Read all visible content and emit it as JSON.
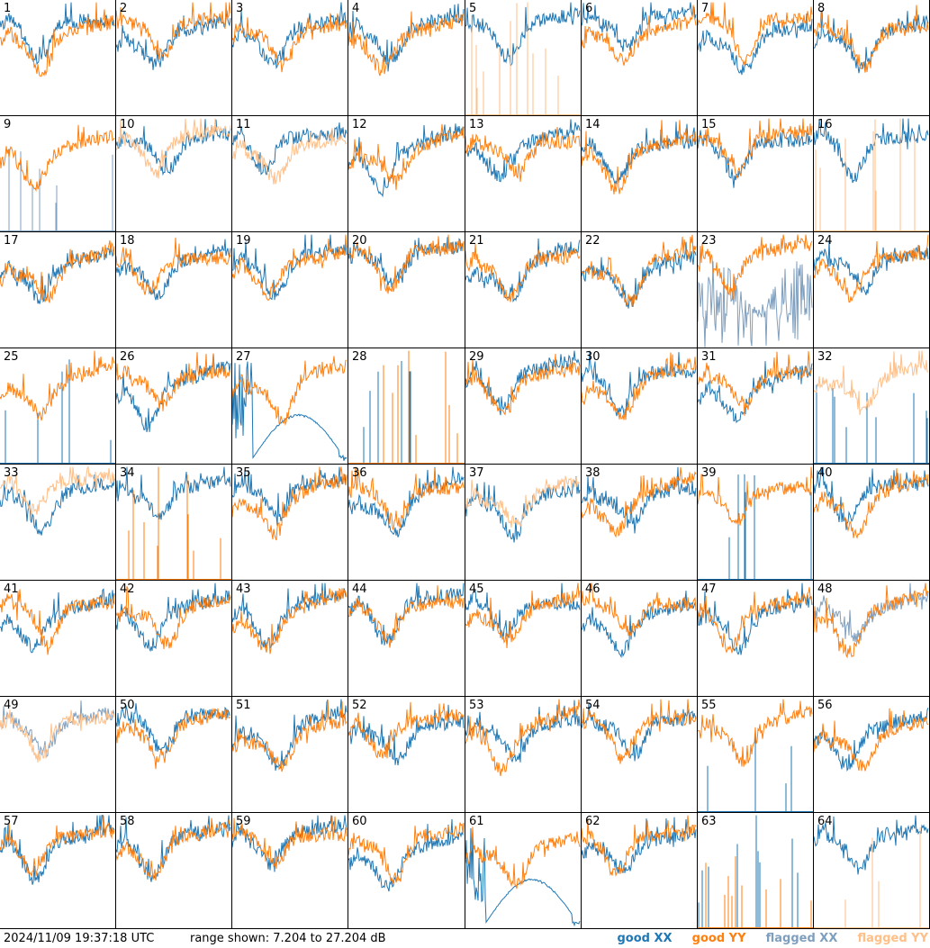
{
  "footer": {
    "timestamp": "2024/11/09 19:37:18 UTC",
    "range_text": "range shown: 7.204 to 27.204 dB"
  },
  "legend": [
    {
      "label": "good XX",
      "color": "#1f77b4"
    },
    {
      "label": "good YY",
      "color": "#ff7f0e"
    },
    {
      "label": "flagged XX",
      "color": "#7f9fbf"
    },
    {
      "label": "flagged YY",
      "color": "#ffbf87"
    }
  ],
  "chart_data": {
    "type": "line",
    "y_unit": "dB",
    "ylim": [
      7.204,
      27.204
    ],
    "grid": false,
    "layout": {
      "rows": 8,
      "cols": 8
    },
    "series_types": [
      "good XX",
      "good YY",
      "flagged XX",
      "flagged YY"
    ],
    "panels": [
      {
        "id": "1",
        "xx": "good",
        "yy": "good"
      },
      {
        "id": "2",
        "xx": "good",
        "yy": "good"
      },
      {
        "id": "3",
        "xx": "good",
        "yy": "good"
      },
      {
        "id": "4",
        "xx": "good",
        "yy": "good"
      },
      {
        "id": "5",
        "xx": "good",
        "yy": "flagged",
        "yy_style": "spiky"
      },
      {
        "id": "6",
        "xx": "good",
        "yy": "good"
      },
      {
        "id": "7",
        "xx": "good",
        "yy": "good"
      },
      {
        "id": "8",
        "xx": "good",
        "yy": "good"
      },
      {
        "id": "9",
        "xx": "flagged",
        "yy": "good",
        "xx_style": "spiky"
      },
      {
        "id": "10",
        "xx": "good",
        "yy": "flagged"
      },
      {
        "id": "11",
        "xx": "good",
        "yy": "flagged"
      },
      {
        "id": "12",
        "xx": "good",
        "yy": "good"
      },
      {
        "id": "13",
        "xx": "good",
        "yy": "good"
      },
      {
        "id": "14",
        "xx": "good",
        "yy": "good"
      },
      {
        "id": "15",
        "xx": "good",
        "yy": "good"
      },
      {
        "id": "16",
        "xx": "good",
        "yy": "flagged",
        "yy_style": "spiky"
      },
      {
        "id": "17",
        "xx": "good",
        "yy": "good"
      },
      {
        "id": "18",
        "xx": "good",
        "yy": "good"
      },
      {
        "id": "19",
        "xx": "good",
        "yy": "good"
      },
      {
        "id": "20",
        "xx": "good",
        "yy": "good"
      },
      {
        "id": "21",
        "xx": "good",
        "yy": "good"
      },
      {
        "id": "22",
        "xx": "good",
        "yy": "good"
      },
      {
        "id": "23",
        "xx": "flagged",
        "yy": "good",
        "xx_style": "noisy"
      },
      {
        "id": "24",
        "xx": "good",
        "yy": "good"
      },
      {
        "id": "25",
        "xx": "good",
        "yy": "good",
        "xx_style": "spiky"
      },
      {
        "id": "26",
        "xx": "good",
        "yy": "good"
      },
      {
        "id": "27",
        "xx": "good",
        "yy": "good",
        "xx_style": "dip"
      },
      {
        "id": "28",
        "xx": "good",
        "yy": "good",
        "xx_style": "spiky",
        "yy_style": "spiky"
      },
      {
        "id": "29",
        "xx": "good",
        "yy": "good"
      },
      {
        "id": "30",
        "xx": "good",
        "yy": "good"
      },
      {
        "id": "31",
        "xx": "good",
        "yy": "good"
      },
      {
        "id": "32",
        "xx": "good",
        "yy": "flagged",
        "xx_style": "spiky"
      },
      {
        "id": "33",
        "xx": "good",
        "yy": "flagged"
      },
      {
        "id": "34",
        "xx": "good",
        "yy": "good",
        "yy_style": "spiky"
      },
      {
        "id": "35",
        "xx": "good",
        "yy": "good"
      },
      {
        "id": "36",
        "xx": "good",
        "yy": "good"
      },
      {
        "id": "37",
        "xx": "good",
        "yy": "flagged"
      },
      {
        "id": "38",
        "xx": "good",
        "yy": "good"
      },
      {
        "id": "39",
        "xx": "good",
        "yy": "good",
        "xx_style": "spiky"
      },
      {
        "id": "40",
        "xx": "good",
        "yy": "good"
      },
      {
        "id": "41",
        "xx": "good",
        "yy": "good"
      },
      {
        "id": "42",
        "xx": "good",
        "yy": "good"
      },
      {
        "id": "43",
        "xx": "good",
        "yy": "good"
      },
      {
        "id": "44",
        "xx": "good",
        "yy": "good"
      },
      {
        "id": "45",
        "xx": "good",
        "yy": "good"
      },
      {
        "id": "46",
        "xx": "good",
        "yy": "good"
      },
      {
        "id": "47",
        "xx": "good",
        "yy": "good"
      },
      {
        "id": "48",
        "xx": "flagged",
        "yy": "good"
      },
      {
        "id": "49",
        "xx": "flagged",
        "yy": "flagged"
      },
      {
        "id": "50",
        "xx": "good",
        "yy": "good"
      },
      {
        "id": "51",
        "xx": "good",
        "yy": "good"
      },
      {
        "id": "52",
        "xx": "good",
        "yy": "good"
      },
      {
        "id": "53",
        "xx": "good",
        "yy": "good"
      },
      {
        "id": "54",
        "xx": "good",
        "yy": "good"
      },
      {
        "id": "55",
        "xx": "good",
        "yy": "good",
        "xx_style": "spiky"
      },
      {
        "id": "56",
        "xx": "good",
        "yy": "good"
      },
      {
        "id": "57",
        "xx": "good",
        "yy": "good"
      },
      {
        "id": "58",
        "xx": "good",
        "yy": "good"
      },
      {
        "id": "59",
        "xx": "good",
        "yy": "good"
      },
      {
        "id": "60",
        "xx": "good",
        "yy": "good"
      },
      {
        "id": "61",
        "xx": "good",
        "yy": "good",
        "xx_style": "dip"
      },
      {
        "id": "62",
        "xx": "good",
        "yy": "good"
      },
      {
        "id": "63",
        "xx": "good",
        "yy": "good",
        "xx_style": "spiky",
        "yy_style": "spiky"
      },
      {
        "id": "64",
        "xx": "good",
        "yy": "flagged",
        "yy_style": "spiky"
      }
    ]
  }
}
